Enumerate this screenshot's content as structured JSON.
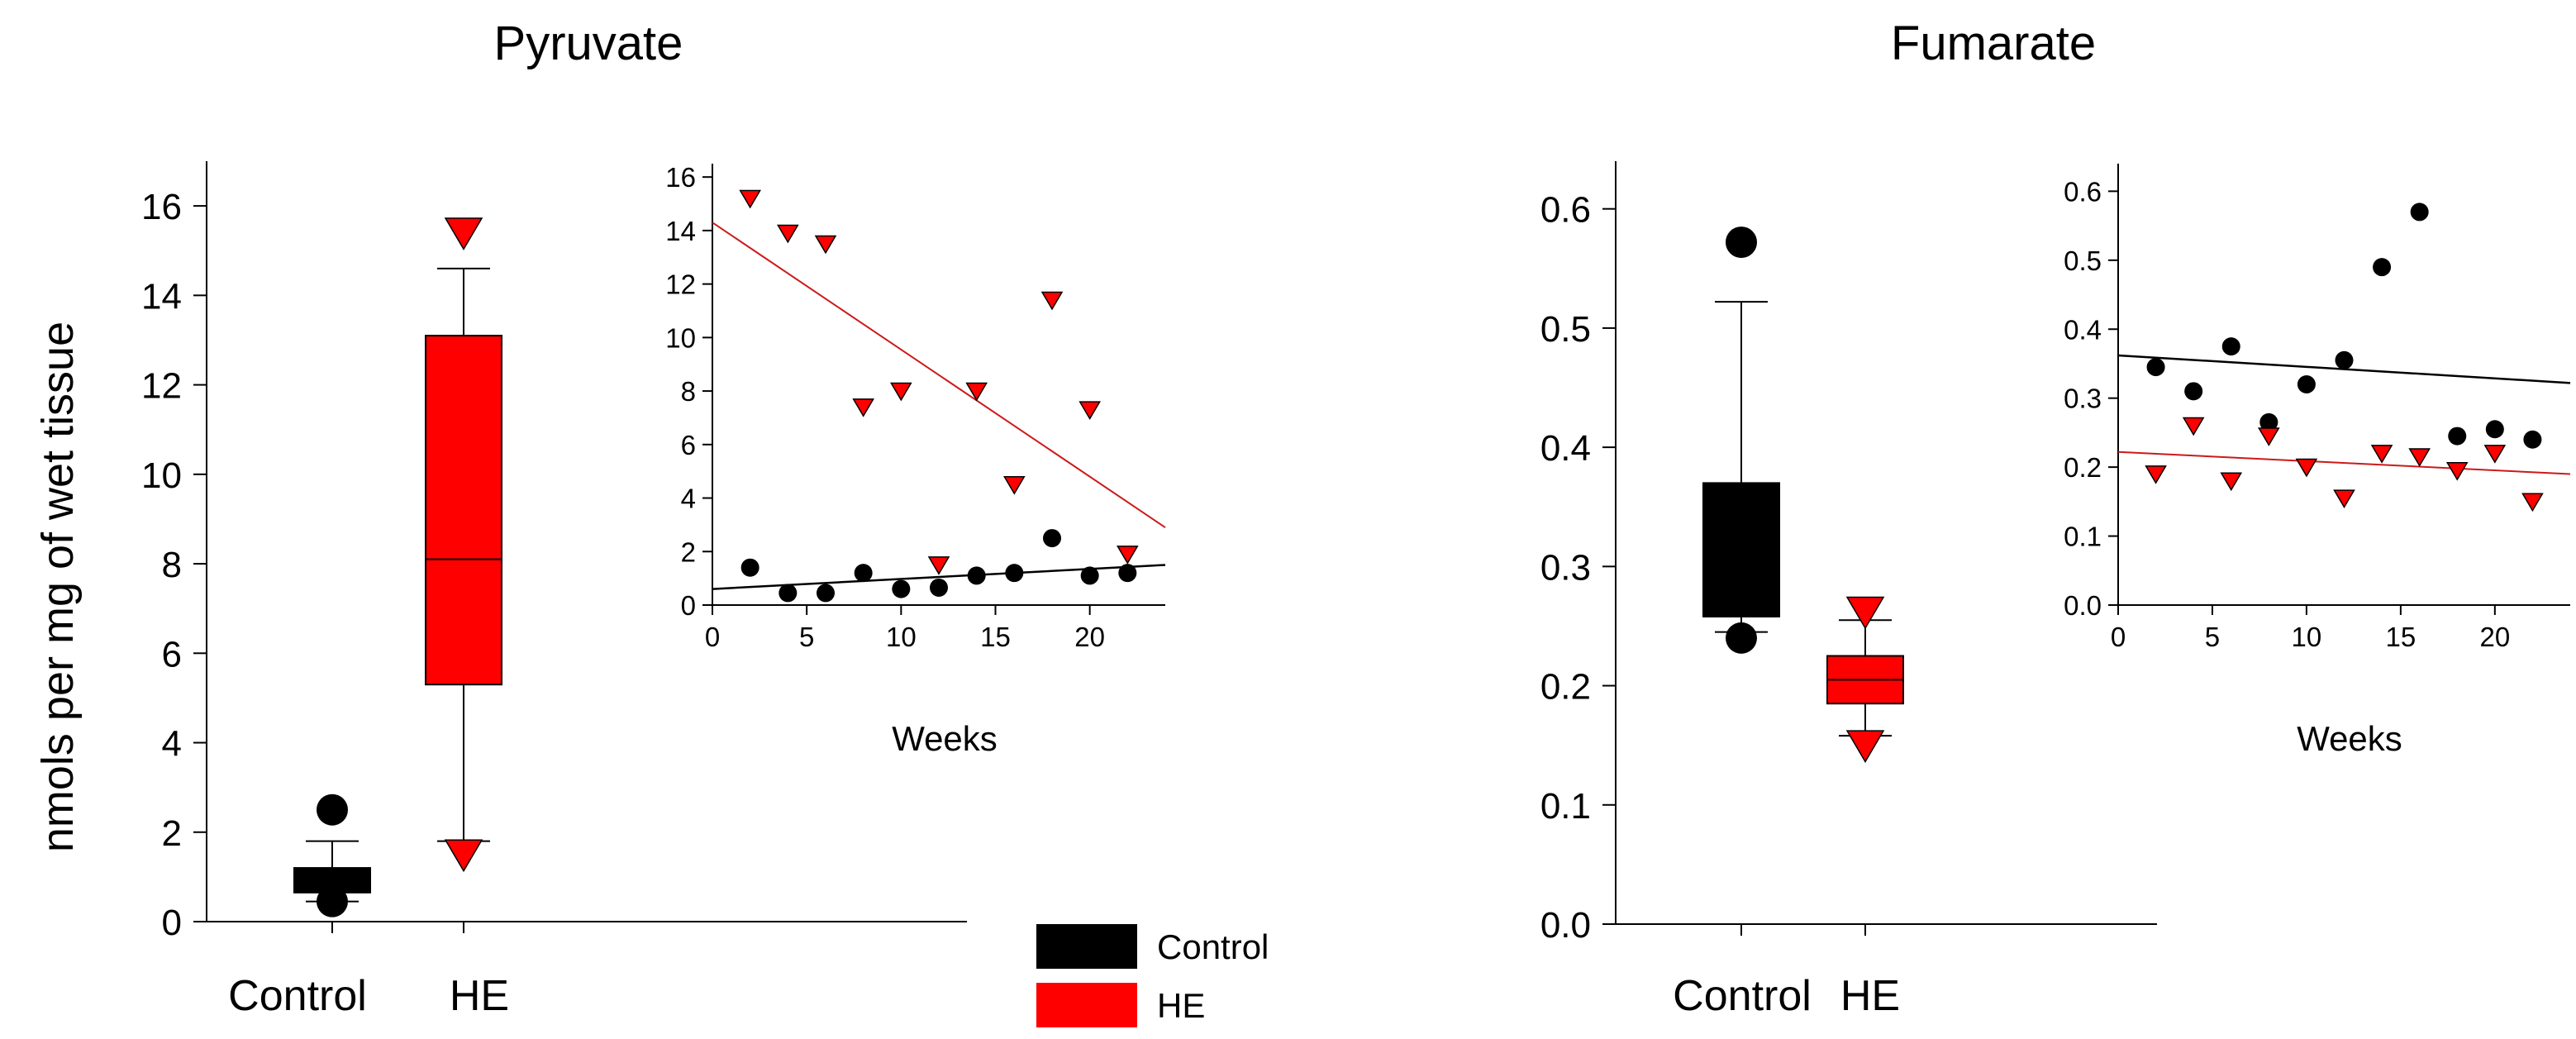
{
  "figure": {
    "shared_ylabel": "nmols per mg of wet tissue",
    "legend": [
      {
        "label": "Control",
        "color": "#000000"
      },
      {
        "label": "HE",
        "color": "#ff0000"
      }
    ]
  },
  "colors": {
    "control": "#000000",
    "he": "#ff0000",
    "control_line": "#000000",
    "he_line": "#cc1a1a"
  },
  "chart_data": [
    {
      "type": "box",
      "title": "Pyruvate",
      "ylabel": "nmols per mg of wet tissue",
      "ylim": [
        0,
        17
      ],
      "yticks": [
        0,
        2,
        4,
        6,
        8,
        10,
        12,
        14,
        16
      ],
      "categories": [
        "Control",
        "HE"
      ],
      "boxes": [
        {
          "name": "Control",
          "whisker_low": 0.45,
          "q1": 0.65,
          "median": 0.9,
          "q3": 1.2,
          "whisker_high": 1.8,
          "outliers_low": [
            0.45
          ],
          "outliers_high": [
            2.5
          ]
        },
        {
          "name": "HE",
          "whisker_low": 1.8,
          "q1": 5.3,
          "median": 8.1,
          "q3": 13.1,
          "whisker_high": 14.6,
          "outliers_low": [
            1.5
          ],
          "outliers_high": [
            15.4
          ]
        }
      ]
    },
    {
      "type": "scatter",
      "title": "Pyruvate (inset)",
      "xlabel": "Weeks",
      "xlim": [
        0,
        24
      ],
      "ylim": [
        0,
        16.5
      ],
      "xticks": [
        0,
        5,
        10,
        15,
        20
      ],
      "yticks": [
        0,
        2,
        4,
        6,
        8,
        10,
        12,
        14,
        16
      ],
      "series": [
        {
          "name": "Control",
          "x": [
            2,
            4,
            6,
            8,
            10,
            12,
            14,
            16,
            18,
            20,
            22
          ],
          "y": [
            1.4,
            0.45,
            0.45,
            1.2,
            0.6,
            0.65,
            1.1,
            1.2,
            2.5,
            1.1,
            1.2
          ],
          "fit": [
            [
              0,
              0.6
            ],
            [
              24,
              1.5
            ]
          ]
        },
        {
          "name": "HE",
          "x": [
            2,
            4,
            6,
            8,
            10,
            12,
            14,
            16,
            18,
            20,
            22
          ],
          "y": [
            15.2,
            13.9,
            13.5,
            7.4,
            8.0,
            1.5,
            8.0,
            4.5,
            11.4,
            7.3,
            1.9
          ],
          "fit": [
            [
              0,
              14.3
            ],
            [
              24,
              2.9
            ]
          ]
        }
      ]
    },
    {
      "type": "box",
      "title": "Fumarate",
      "ylim": [
        0,
        0.64
      ],
      "yticks": [
        0.0,
        0.1,
        0.2,
        0.3,
        0.4,
        0.5,
        0.6
      ],
      "ytick_labels": [
        "0.0",
        "0.1",
        "0.2",
        "0.3",
        "0.4",
        "0.5",
        "0.6"
      ],
      "categories": [
        "Control",
        "HE"
      ],
      "boxes": [
        {
          "name": "Control",
          "whisker_low": 0.245,
          "q1": 0.258,
          "median": 0.258,
          "q3": 0.37,
          "whisker_high": 0.522,
          "outliers_low": [
            0.24
          ],
          "outliers_high": [
            0.572
          ]
        },
        {
          "name": "HE",
          "whisker_low": 0.158,
          "q1": 0.185,
          "median": 0.205,
          "q3": 0.225,
          "whisker_high": 0.255,
          "outliers_low": [
            0.15
          ],
          "outliers_high": [
            0.262
          ]
        }
      ]
    },
    {
      "type": "scatter",
      "title": "Fumarate (inset)",
      "xlabel": "Weeks",
      "xlim": [
        0,
        24
      ],
      "ylim": [
        0,
        0.64
      ],
      "xticks": [
        0,
        5,
        10,
        15,
        20
      ],
      "yticks": [
        0.0,
        0.1,
        0.2,
        0.3,
        0.4,
        0.5,
        0.6
      ],
      "ytick_labels": [
        "0.0",
        "0.1",
        "0.2",
        "0.3",
        "0.4",
        "0.5",
        "0.6"
      ],
      "series": [
        {
          "name": "Control",
          "x": [
            2,
            4,
            6,
            8,
            10,
            12,
            14,
            16,
            18,
            20,
            22
          ],
          "y": [
            0.345,
            0.31,
            0.375,
            0.265,
            0.32,
            0.355,
            0.49,
            0.57,
            0.245,
            0.255,
            0.24
          ],
          "fit": [
            [
              0,
              0.362
            ],
            [
              24,
              0.322
            ]
          ]
        },
        {
          "name": "HE",
          "x": [
            2,
            4,
            6,
            8,
            10,
            12,
            14,
            16,
            18,
            20,
            22
          ],
          "y": [
            0.19,
            0.26,
            0.18,
            0.245,
            0.2,
            0.155,
            0.22,
            0.215,
            0.195,
            0.22,
            0.15
          ],
          "fit": [
            [
              0,
              0.222
            ],
            [
              24,
              0.19
            ]
          ]
        }
      ]
    }
  ]
}
